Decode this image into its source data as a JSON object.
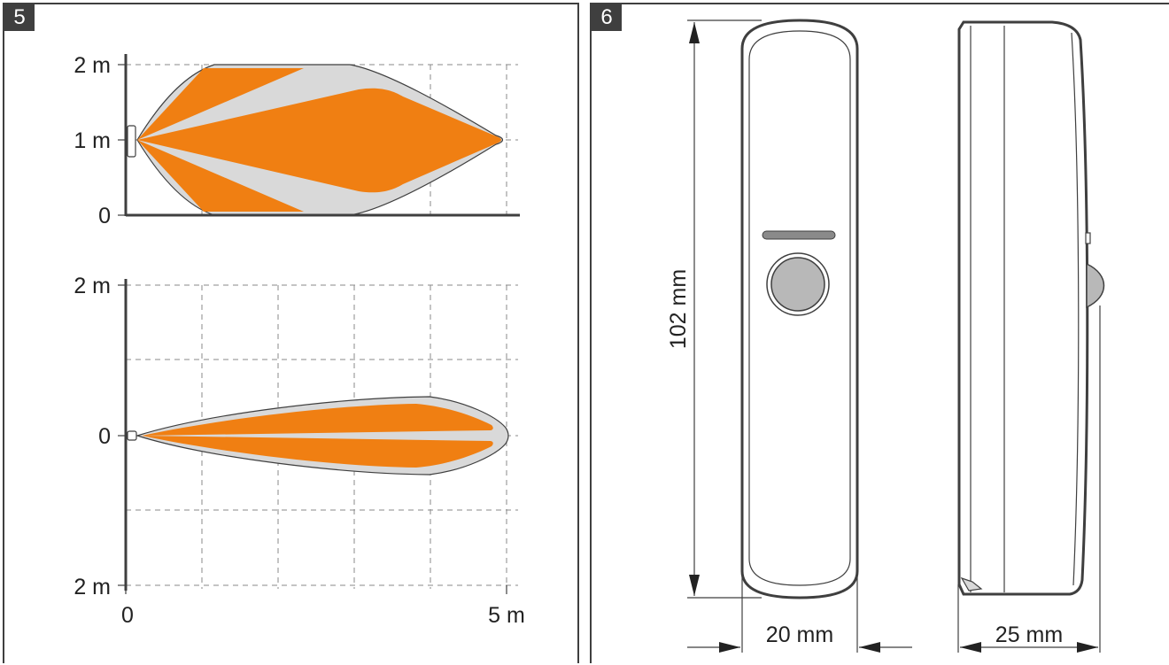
{
  "figure5": {
    "badge": "5",
    "top_view": {
      "y_labels": {
        "top": "2 m",
        "middle": "1 m",
        "bottom": "0"
      }
    },
    "side_view": {
      "y_labels": {
        "top": "2 m",
        "middle": "0",
        "bottom": "2 m"
      },
      "x_labels": {
        "start": "0",
        "end": "5 m"
      }
    }
  },
  "figure6": {
    "badge": "6",
    "height_label": "102 mm",
    "width_label": "20 mm",
    "depth_label": "25 mm"
  },
  "colors": {
    "zone_orange": "#f07f12",
    "zone_gray": "#d9d9d9",
    "outline": "#3f3f3f",
    "grid": "#8a8a8a"
  }
}
